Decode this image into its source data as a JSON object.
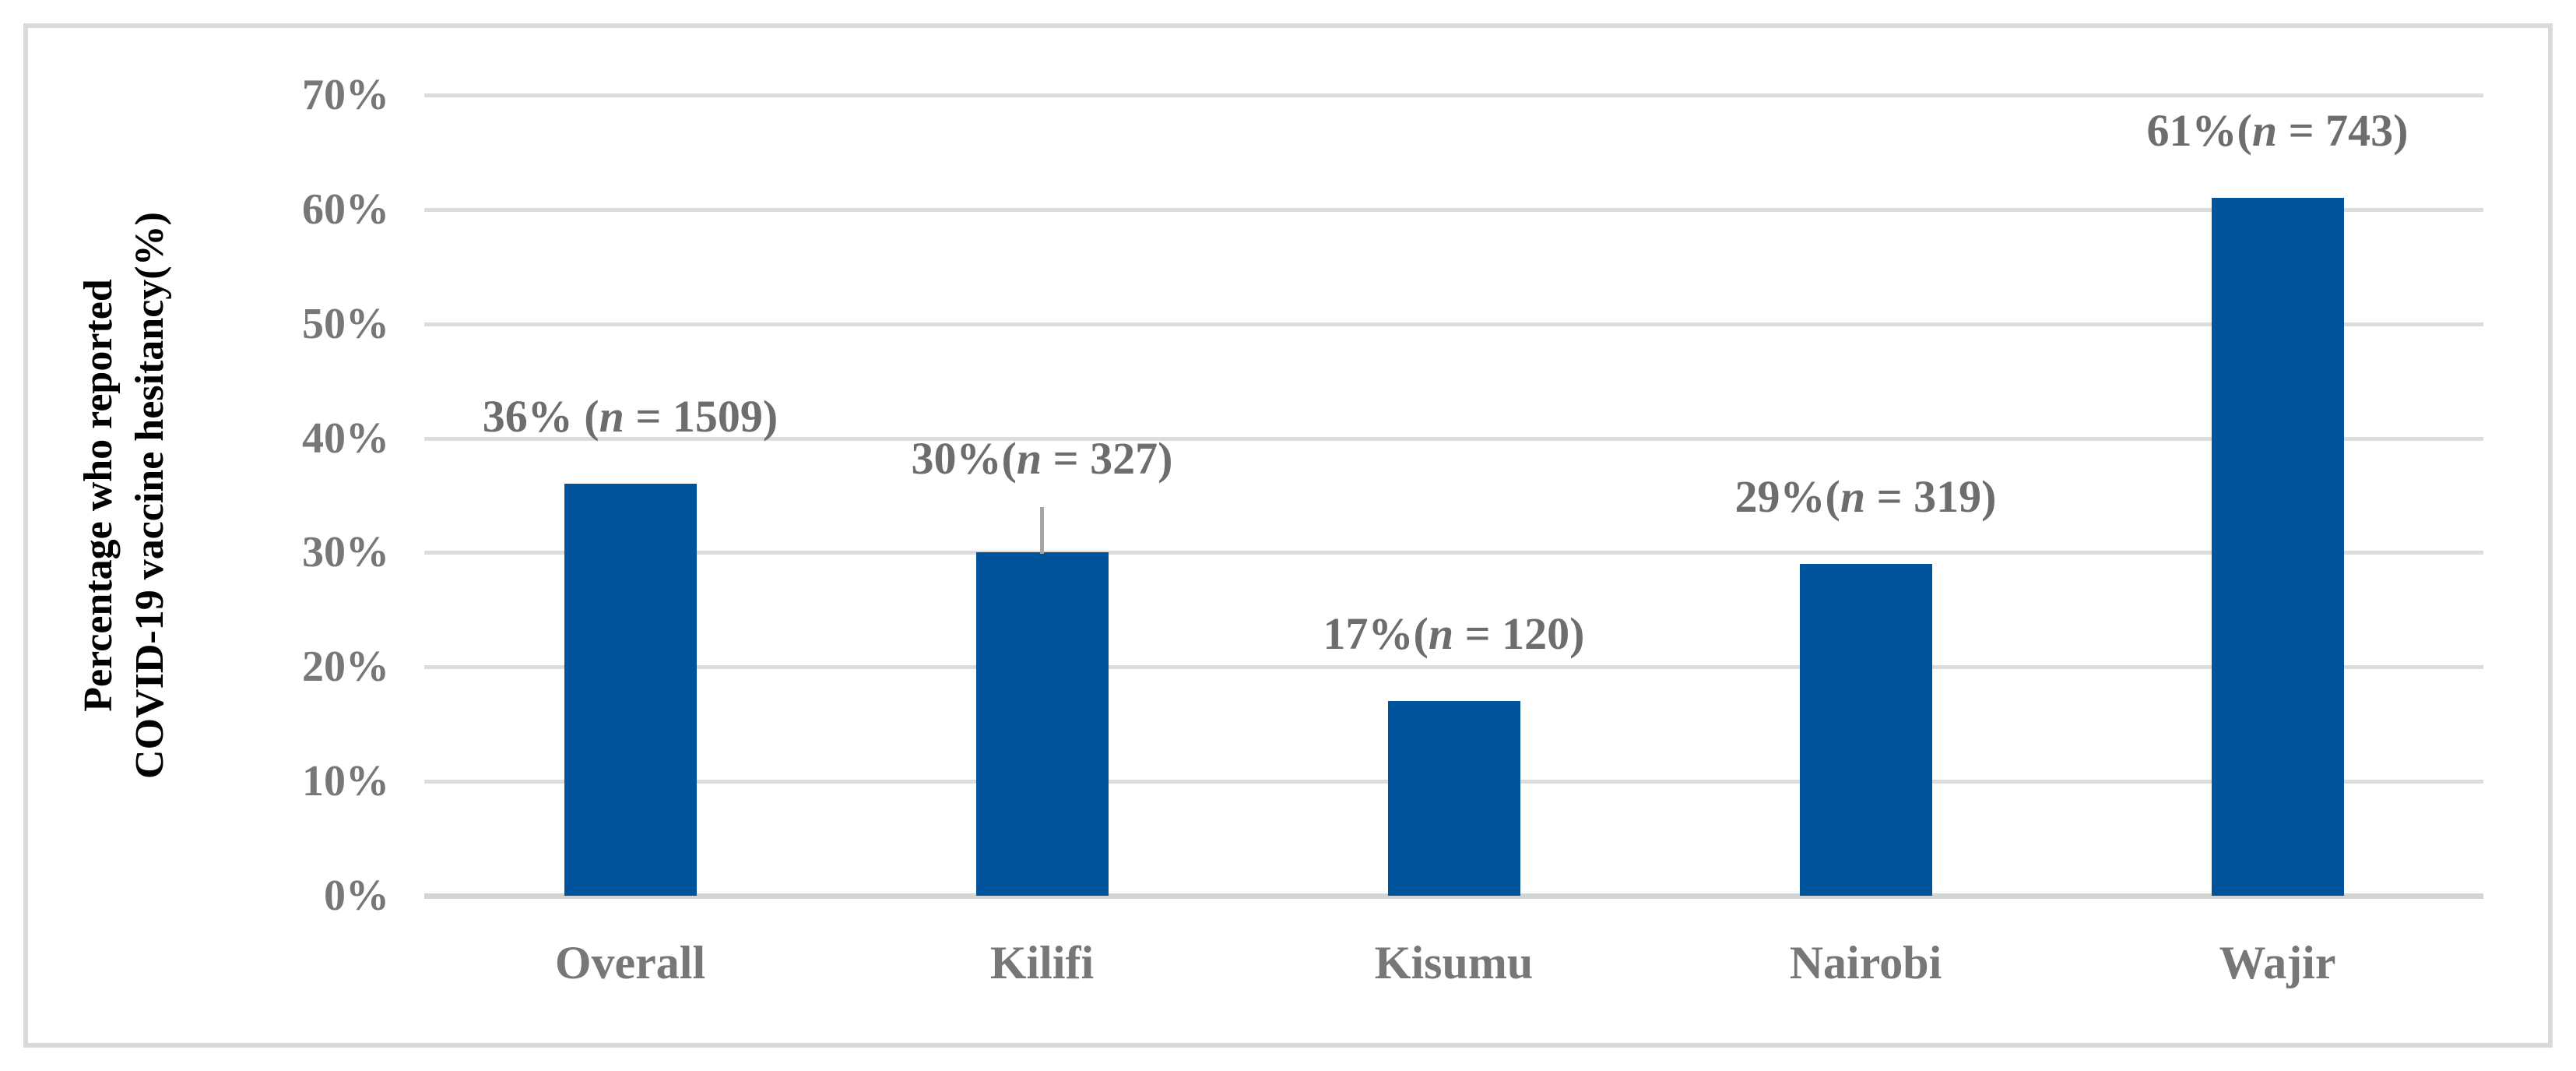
{
  "chart_data": {
    "type": "bar",
    "categories": [
      "Overall",
      "Kilifi",
      "Kisumu",
      "Nairobi",
      "Wajir"
    ],
    "values": [
      36,
      30,
      17,
      29,
      61
    ],
    "n_values": [
      1509,
      327,
      120,
      319,
      743
    ],
    "data_labels": [
      "36% (n = 1509)",
      "30%(n = 327)",
      "17%(n = 120)",
      "29%(n = 319)",
      "61%(n = 743)"
    ],
    "data_label_parts": [
      {
        "before_n": "36% (",
        "after_n": " = 1509)"
      },
      {
        "before_n": "30%(",
        "after_n": " = 327)"
      },
      {
        "before_n": "17%(",
        "after_n": " = 120)"
      },
      {
        "before_n": "29%(",
        "after_n": " = 319)"
      },
      {
        "before_n": "61%(",
        "after_n": " = 743)"
      }
    ],
    "label_leader_lines": [
      false,
      true,
      false,
      false,
      false
    ],
    "xlabel": "",
    "ylabel": "Percentage who reported COVID-19 vaccine hesitancy(%)",
    "ylabel_lines": [
      "Percentage who reported",
      "COVID-19 vaccine hesitancy(%)"
    ],
    "yticks": [
      "0%",
      "10%",
      "20%",
      "30%",
      "40%",
      "50%",
      "60%",
      "70%"
    ],
    "ylim": [
      0,
      70
    ],
    "grid": "horizontal",
    "legend": "none",
    "colors": {
      "bar": "#00549C",
      "text": "#777777",
      "data_label_text": "#6D6D6D",
      "gridline": "#DCDCDC",
      "axis_line": "#D4D4D4",
      "frame": "#D9D9D9",
      "leader_line": "#A6A6A6"
    }
  }
}
